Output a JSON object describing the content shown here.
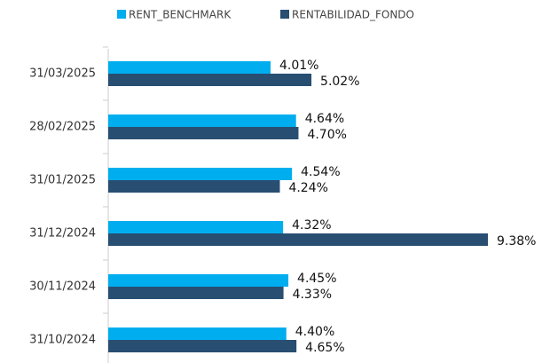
{
  "chart_data": {
    "type": "bar",
    "orientation": "horizontal",
    "categories": [
      "31/03/2025",
      "28/02/2025",
      "31/01/2025",
      "31/12/2024",
      "30/11/2024",
      "31/10/2024"
    ],
    "series": [
      {
        "name": "RENT_BENCHMARK",
        "color": "#00aeef",
        "values": [
          4.01,
          4.64,
          4.54,
          4.32,
          4.45,
          4.4
        ],
        "value_labels": [
          "4.01%",
          "4.64%",
          "4.54%",
          "4.32%",
          "4.45%",
          "4.40%"
        ]
      },
      {
        "name": "RENTABILIDAD_FONDO",
        "color": "#284e72",
        "values": [
          5.02,
          4.7,
          4.24,
          9.38,
          4.33,
          4.65
        ],
        "value_labels": [
          "5.02%",
          "4.70%",
          "4.24%",
          "9.38%",
          "4.33%",
          "4.65%"
        ]
      }
    ],
    "legend": "top"
  }
}
